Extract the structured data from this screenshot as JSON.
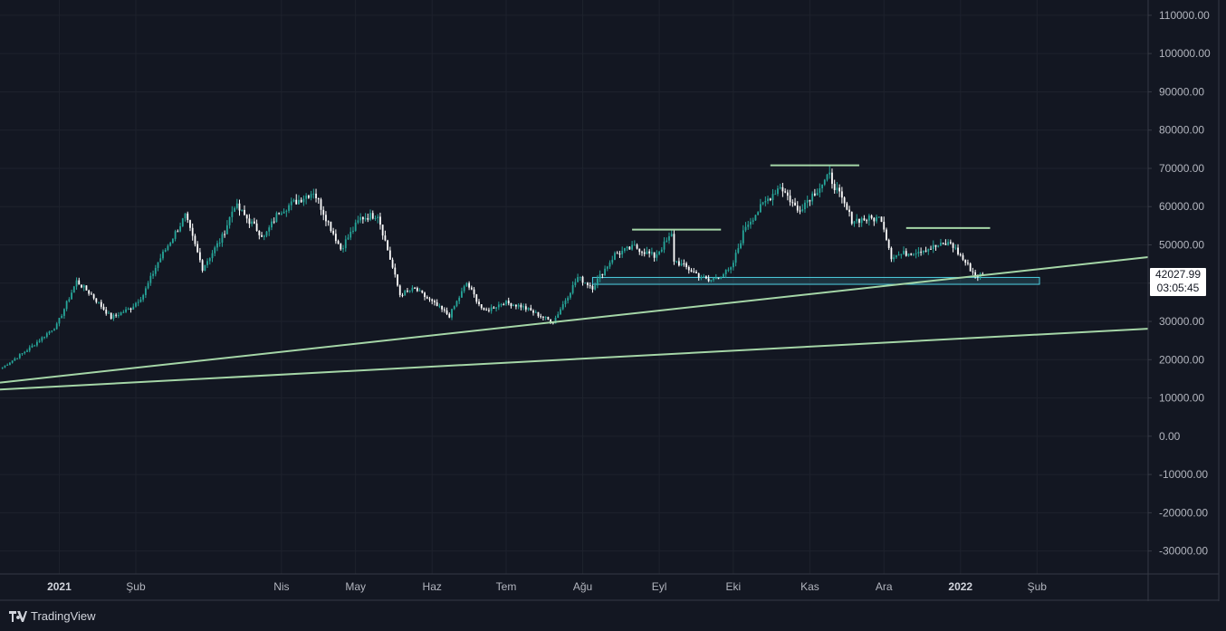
{
  "brand": {
    "name": "TradingView",
    "icon": "tradingview-logo-icon"
  },
  "last_price": {
    "value": "42027.99",
    "countdown": "03:05:45"
  },
  "colors": {
    "background": "#131722",
    "up": "#26a69a",
    "down": "#ffffff",
    "trendline": "#a5d6a7",
    "zone": "#4dd0e1"
  },
  "chart_data": {
    "type": "candlestick",
    "yaxis": {
      "ticks": [
        "110000.00",
        "100000.00",
        "90000.00",
        "80000.00",
        "70000.00",
        "60000.00",
        "50000.00",
        "40000.00",
        "30000.00",
        "20000.00",
        "10000.00",
        "0.00",
        "-10000.00",
        "-20000.00",
        "-30000.00"
      ],
      "range": [
        -36000,
        114000
      ]
    },
    "xaxis": {
      "ticks": [
        {
          "label": "2021",
          "date": "2021-01-01",
          "bold": true
        },
        {
          "label": "Şub",
          "date": "2021-02-01"
        },
        {
          "label": "Nis",
          "date": "2021-04-01"
        },
        {
          "label": "May",
          "date": "2021-05-01"
        },
        {
          "label": "Haz",
          "date": "2021-06-01"
        },
        {
          "label": "Tem",
          "date": "2021-07-01"
        },
        {
          "label": "Ağu",
          "date": "2021-08-01"
        },
        {
          "label": "Eyl",
          "date": "2021-09-01"
        },
        {
          "label": "Eki",
          "date": "2021-10-01"
        },
        {
          "label": "Kas",
          "date": "2021-11-01"
        },
        {
          "label": "Ara",
          "date": "2021-12-01"
        },
        {
          "label": "2022",
          "date": "2022-01-01",
          "bold": true
        },
        {
          "label": "Şub",
          "date": "2022-02-01"
        }
      ],
      "range": [
        "2020-12-08",
        "2022-03-18"
      ]
    },
    "price_path": [
      [
        "2020-12-09",
        18000
      ],
      [
        "2020-12-20",
        23000
      ],
      [
        "2020-12-31",
        29000
      ],
      [
        "2021-01-08",
        40500
      ],
      [
        "2021-01-14",
        37000
      ],
      [
        "2021-01-22",
        31000
      ],
      [
        "2021-01-30",
        33500
      ],
      [
        "2021-02-04",
        37000
      ],
      [
        "2021-02-10",
        45500
      ],
      [
        "2021-02-21",
        57500
      ],
      [
        "2021-02-28",
        44000
      ],
      [
        "2021-03-08",
        52000
      ],
      [
        "2021-03-13",
        60500
      ],
      [
        "2021-03-25",
        52000
      ],
      [
        "2021-03-31",
        58800
      ],
      [
        "2021-04-14",
        64000
      ],
      [
        "2021-04-25",
        49000
      ],
      [
        "2021-05-03",
        57000
      ],
      [
        "2021-05-10",
        58000
      ],
      [
        "2021-05-19",
        37000
      ],
      [
        "2021-05-25",
        38500
      ],
      [
        "2021-06-08",
        31500
      ],
      [
        "2021-06-15",
        40000
      ],
      [
        "2021-06-22",
        32500
      ],
      [
        "2021-06-30",
        35000
      ],
      [
        "2021-07-07",
        34000
      ],
      [
        "2021-07-20",
        29800
      ],
      [
        "2021-07-30",
        41500
      ],
      [
        "2021-08-05",
        39000
      ],
      [
        "2021-08-14",
        47500
      ],
      [
        "2021-08-22",
        49500
      ],
      [
        "2021-08-30",
        47000
      ],
      [
        "2021-09-06",
        52500
      ],
      [
        "2021-09-07",
        46000
      ],
      [
        "2021-09-21",
        40500
      ],
      [
        "2021-09-30",
        43500
      ],
      [
        "2021-10-06",
        55000
      ],
      [
        "2021-10-15",
        62000
      ],
      [
        "2021-10-20",
        65500
      ],
      [
        "2021-10-27",
        59000
      ],
      [
        "2021-11-09",
        68000
      ],
      [
        "2021-11-18",
        56500
      ],
      [
        "2021-11-30",
        57000
      ],
      [
        "2021-12-04",
        47000
      ],
      [
        "2021-12-15",
        48500
      ],
      [
        "2021-12-28",
        50500
      ],
      [
        "2022-01-07",
        42000
      ],
      [
        "2022-01-10",
        42028
      ]
    ],
    "annotations": {
      "horizontal_lines": [
        {
          "from": "2021-08-21",
          "to": "2021-09-26",
          "value": 54000
        },
        {
          "from": "2021-10-16",
          "to": "2021-11-21",
          "value": 70800
        },
        {
          "from": "2021-12-10",
          "to": "2022-01-13",
          "value": 54400
        }
      ],
      "zone": {
        "from": "2021-08-05",
        "to": "2022-02-02",
        "low": 39700,
        "high": 41500
      },
      "trendlines": [
        {
          "from": [
            "2020-12-08",
            14000
          ],
          "to": [
            "2022-03-18",
            46800
          ]
        },
        {
          "from": [
            "2020-12-08",
            12200
          ],
          "to": [
            "2022-03-18",
            28100
          ]
        }
      ]
    }
  }
}
